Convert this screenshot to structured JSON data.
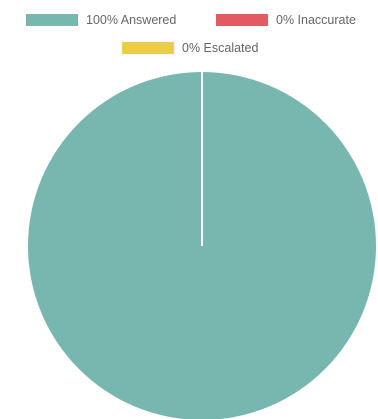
{
  "chart_data": {
    "type": "pie",
    "title": "",
    "legend_position": "top",
    "categories": [
      "100% Answered",
      "0% Inaccurate",
      "0% Escalated"
    ],
    "values": [
      100,
      0,
      0
    ],
    "colors": [
      "#77b7b0",
      "#e35b60",
      "#eccd4a"
    ],
    "slice_border_color": "#ffffff",
    "start_angle": "top, clockwise"
  }
}
